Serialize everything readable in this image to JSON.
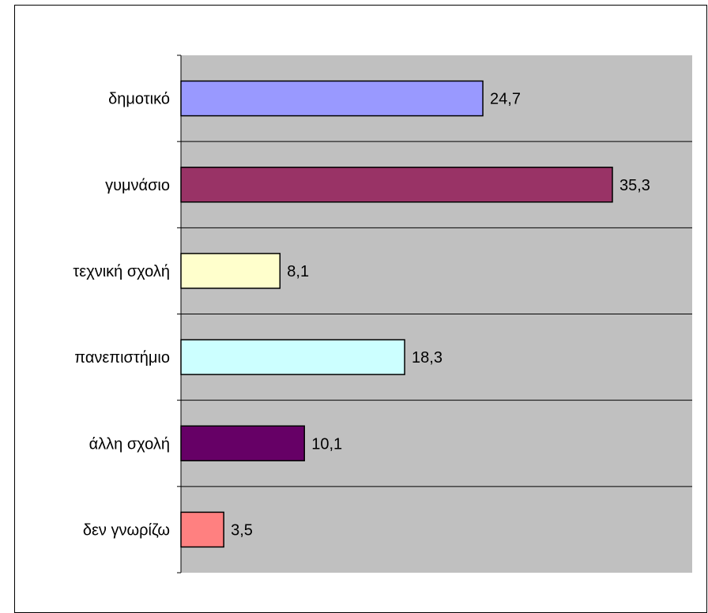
{
  "chart_data": {
    "type": "bar",
    "orientation": "horizontal",
    "categories": [
      "δημοτικό",
      "γυμνάσιο",
      "τεχνική σχολή",
      "πανεπιστήμιο",
      "άλλη σχολή",
      "δεν γνωρίζω"
    ],
    "values": [
      24.7,
      35.3,
      8.1,
      18.3,
      10.1,
      3.5
    ],
    "data_labels": [
      "24,7",
      "35,3",
      "8,1",
      "18,3",
      "10,1",
      "3,5"
    ],
    "colors": [
      "#9999ff",
      "#993366",
      "#ffffcc",
      "#ccffff",
      "#660066",
      "#ff8080"
    ],
    "plot_background": "#c0c0c0",
    "grid": true,
    "legend": "none",
    "title": "",
    "xlabel": "",
    "ylabel": ""
  }
}
